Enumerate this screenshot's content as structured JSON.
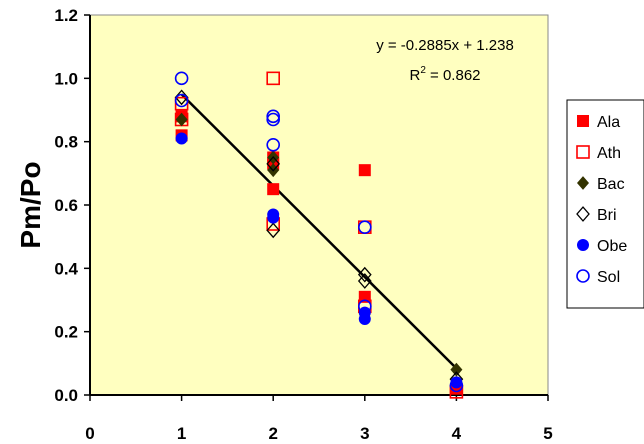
{
  "chart_data": {
    "type": "scatter",
    "title": "",
    "xlabel": "",
    "ylabel": "Pm/Po",
    "xlim": [
      0,
      5
    ],
    "ylim": [
      0,
      1.2
    ],
    "xticks": [
      "0",
      "1",
      "2",
      "3",
      "4",
      "5"
    ],
    "yticks": [
      "0.0",
      "0.2",
      "0.4",
      "0.6",
      "0.8",
      "1.0",
      "1.2"
    ],
    "grid": false,
    "plot_background": "#FFFFC0",
    "legend_position": "right",
    "series": [
      {
        "name": "Ala",
        "marker": "square-filled",
        "color": "#FF0000",
        "points": [
          [
            1,
            0.82
          ],
          [
            1,
            0.88
          ],
          [
            2,
            0.65
          ],
          [
            2,
            0.73
          ],
          [
            2,
            0.75
          ],
          [
            3,
            0.31
          ],
          [
            3,
            0.71
          ],
          [
            4,
            0.02
          ]
        ]
      },
      {
        "name": "Ath",
        "marker": "square-open",
        "color": "#FF0000",
        "points": [
          [
            1,
            0.87
          ],
          [
            1,
            0.92
          ],
          [
            2,
            1.0
          ],
          [
            2,
            0.54
          ],
          [
            3,
            0.53
          ],
          [
            3,
            0.28
          ],
          [
            4,
            0.01
          ]
        ]
      },
      {
        "name": "Bac",
        "marker": "diamond-filled",
        "color": "#333300",
        "points": [
          [
            1,
            0.87
          ],
          [
            2,
            0.71
          ],
          [
            2,
            0.75
          ],
          [
            4,
            0.08
          ]
        ]
      },
      {
        "name": "Bri",
        "marker": "diamond-open",
        "color": "#000000",
        "points": [
          [
            1,
            0.94
          ],
          [
            2,
            0.52
          ],
          [
            2,
            0.73
          ],
          [
            3,
            0.38
          ],
          [
            3,
            0.36
          ],
          [
            4,
            0.05
          ]
        ]
      },
      {
        "name": "Obe",
        "marker": "circle-filled",
        "color": "#0000FF",
        "points": [
          [
            1,
            0.81
          ],
          [
            2,
            0.56
          ],
          [
            2,
            0.57
          ],
          [
            3,
            0.24
          ],
          [
            3,
            0.26
          ],
          [
            4,
            0.04
          ]
        ]
      },
      {
        "name": "Sol",
        "marker": "circle-open",
        "color": "#0000FF",
        "points": [
          [
            1,
            1.0
          ],
          [
            1,
            0.93
          ],
          [
            2,
            0.88
          ],
          [
            2,
            0.87
          ],
          [
            2,
            0.79
          ],
          [
            3,
            0.53
          ],
          [
            3,
            0.28
          ],
          [
            4,
            0.03
          ]
        ]
      }
    ],
    "trendline": {
      "slope": -0.2885,
      "intercept": 1.238,
      "x_range": [
        1,
        4
      ],
      "color": "#000000",
      "equation": "y = -0.2885x + 1.238",
      "r2_base": "R",
      "r2_exp": "2",
      "r2_rest": " = 0.862"
    }
  }
}
